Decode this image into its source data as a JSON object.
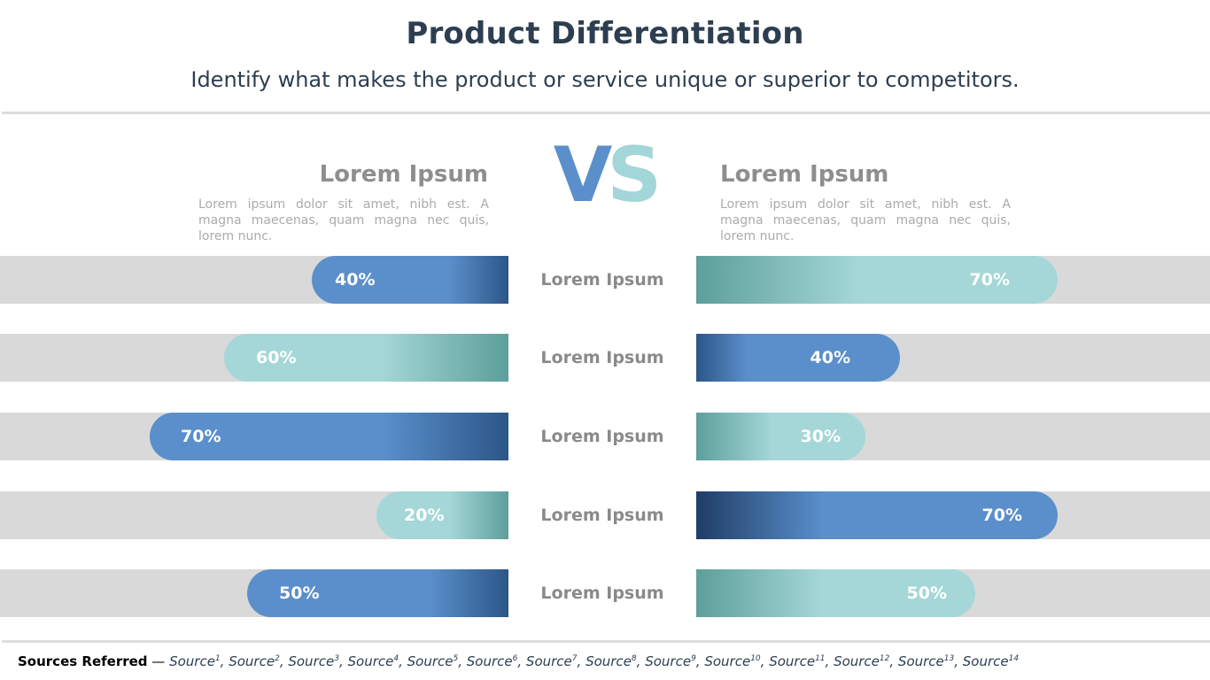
{
  "header": {
    "title": "Product Differentiation",
    "subtitle": "Identify what makes the product or service unique or superior to competitors."
  },
  "vs": {
    "v": "V",
    "s": "S"
  },
  "left": {
    "heading": "Lorem Ipsum",
    "description": "Lorem ipsum dolor sit amet, nibh est. A magna maecenas, quam magna nec quis, lorem nunc."
  },
  "right": {
    "heading": "Lorem Ipsum",
    "description": "Lorem ipsum dolor sit amet, nibh est. A magna maecenas, quam magna nec quis, lorem nunc."
  },
  "colors": {
    "blue": "#5a8fcb",
    "blue_dark": "#2c5688",
    "blue_darkest": "#1f3d66",
    "teal_light": "#a5d7d8",
    "teal_dark": "#5c9f9b",
    "track": "#d9d9d9"
  },
  "chart_data": {
    "type": "bar",
    "categories": [
      "Lorem Ipsum",
      "Lorem Ipsum",
      "Lorem Ipsum",
      "Lorem Ipsum",
      "Lorem Ipsum"
    ],
    "series": [
      {
        "values": [
          40,
          60,
          70,
          20,
          50
        ],
        "labels": [
          "40%",
          "60%",
          "70%",
          "20%",
          "50%"
        ],
        "styles": [
          "blue",
          "teal",
          "blue",
          "teal",
          "blue"
        ]
      },
      {
        "values": [
          70,
          40,
          30,
          70,
          50
        ],
        "labels": [
          "70%",
          "40%",
          "30%",
          "70%",
          "50%"
        ],
        "styles": [
          "teal",
          "blue",
          "teal",
          "blue",
          "teal"
        ]
      }
    ],
    "xlim": [
      0,
      100
    ],
    "orientation": "horizontal, mirrored",
    "title": "",
    "xlabel": "",
    "ylabel": ""
  },
  "footer": {
    "sources_label": "Sources Referred",
    "separator": " — ",
    "sources": [
      "Source1",
      "Source2",
      "Source3",
      "Source4",
      "Source5",
      "Source6",
      "Source7",
      "Source8",
      "Source9",
      "Source10",
      "Source11",
      "Source12",
      "Source13",
      "Source14"
    ]
  }
}
